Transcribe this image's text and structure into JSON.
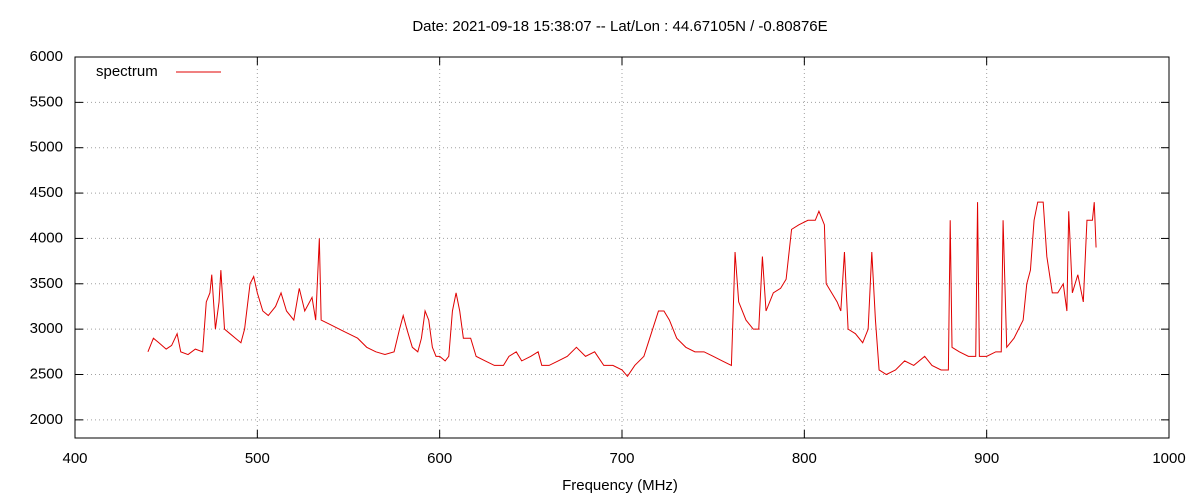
{
  "chart_data": {
    "type": "line",
    "title": "Date: 2021-09-18 15:38:07  --  Lat/Lon : 44.67105N / -0.80876E",
    "x_label": "Frequency (MHz)",
    "xlim": [
      400,
      1000
    ],
    "xticks": [
      400,
      500,
      600,
      700,
      800,
      900,
      1000
    ],
    "ylim": [
      1800,
      6000
    ],
    "yticks": [
      2000,
      2500,
      3000,
      3500,
      4000,
      4500,
      5000,
      5500,
      6000
    ],
    "grid": true,
    "legend": "top-left",
    "x": [
      440,
      443,
      446,
      450,
      453,
      456,
      458,
      462,
      466,
      470,
      472,
      474,
      475,
      477,
      479,
      480,
      482,
      485,
      488,
      491,
      493,
      496,
      498,
      500,
      503,
      506,
      510,
      513,
      516,
      520,
      523,
      526,
      530,
      532,
      534,
      535,
      540,
      545,
      550,
      555,
      560,
      565,
      570,
      575,
      578,
      580,
      582,
      585,
      588,
      590,
      592,
      594,
      596,
      598,
      600,
      603,
      605,
      607,
      609,
      611,
      613,
      617,
      620,
      625,
      630,
      635,
      638,
      642,
      645,
      650,
      654,
      656,
      660,
      665,
      670,
      675,
      680,
      685,
      690,
      695,
      700,
      703,
      707,
      712,
      716,
      720,
      723,
      726,
      730,
      735,
      740,
      745,
      750,
      755,
      760,
      761,
      762,
      764,
      768,
      772,
      775,
      777,
      779,
      783,
      787,
      790,
      793,
      797,
      802,
      806,
      808,
      811,
      812,
      815,
      818,
      820,
      822,
      824,
      828,
      832,
      835,
      837,
      839,
      841,
      845,
      850,
      855,
      860,
      866,
      870,
      875,
      879,
      880,
      881,
      885,
      890,
      894,
      895,
      896,
      900,
      905,
      908,
      909,
      911,
      915,
      920,
      922,
      924,
      926,
      928,
      931,
      933,
      936,
      939,
      942,
      944,
      945,
      947,
      950,
      953,
      955,
      958,
      959,
      960
    ],
    "series": [
      {
        "name": "spectrum",
        "color": "#e00000",
        "values": [
          2750,
          2900,
          2850,
          2780,
          2820,
          2950,
          2750,
          2720,
          2780,
          2750,
          3300,
          3400,
          3600,
          3000,
          3300,
          3650,
          3000,
          2950,
          2900,
          2850,
          3000,
          3500,
          3580,
          3400,
          3200,
          3150,
          3250,
          3400,
          3200,
          3100,
          3450,
          3200,
          3350,
          3100,
          4000,
          3100,
          3050,
          3000,
          2950,
          2900,
          2800,
          2750,
          2720,
          2750,
          3000,
          3150,
          3000,
          2800,
          2750,
          2900,
          3200,
          3100,
          2800,
          2700,
          2700,
          2650,
          2700,
          3200,
          3400,
          3200,
          2900,
          2900,
          2700,
          2650,
          2600,
          2600,
          2700,
          2750,
          2650,
          2700,
          2750,
          2600,
          2600,
          2650,
          2700,
          2800,
          2700,
          2750,
          2600,
          2600,
          2550,
          2480,
          2600,
          2700,
          2950,
          3200,
          3200,
          3100,
          2900,
          2800,
          2750,
          2750,
          2700,
          2650,
          2600,
          3200,
          3850,
          3300,
          3100,
          3000,
          3000,
          3800,
          3200,
          3400,
          3450,
          3550,
          4100,
          4150,
          4200,
          4200,
          4300,
          4150,
          3500,
          3400,
          3300,
          3200,
          3850,
          3000,
          2950,
          2850,
          3000,
          3850,
          3100,
          2550,
          2500,
          2550,
          2650,
          2600,
          2700,
          2600,
          2550,
          2550,
          4200,
          2800,
          2750,
          2700,
          2700,
          4400,
          2700,
          2700,
          2750,
          2750,
          4200,
          2800,
          2900,
          3100,
          3500,
          3650,
          4200,
          4400,
          4400,
          3800,
          3400,
          3400,
          3500,
          3200,
          4300,
          3400,
          3600,
          3300,
          4200,
          4200,
          4400,
          3900
        ]
      }
    ]
  }
}
